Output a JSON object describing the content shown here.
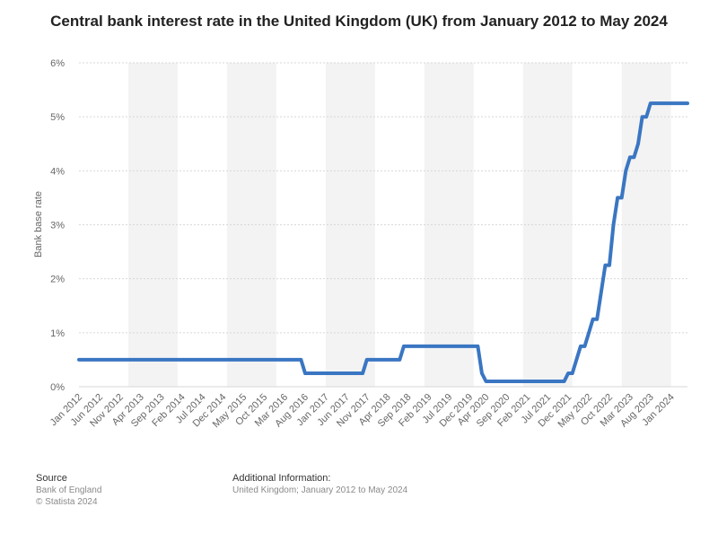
{
  "title": "Central bank interest rate in the United Kingdom (UK) from January 2012 to May 2024",
  "colors": {
    "line": "#3a76c2",
    "grid": "#d7d7d7",
    "band": "#f3f3f3",
    "text": "#666666"
  },
  "footer": {
    "source_heading": "Source",
    "source_lines": [
      "Bank of England",
      "© Statista 2024"
    ],
    "info_heading": "Additional Information:",
    "info_text": "United Kingdom; January 2012 to May 2024"
  },
  "chart_data": {
    "type": "line",
    "title": "Central bank interest rate in the United Kingdom (UK) from January 2012 to May 2024",
    "xlabel": "",
    "ylabel": "Bank base rate",
    "x_range": [
      "2012-01",
      "2024-05"
    ],
    "ylim": [
      0,
      6
    ],
    "y_ticks": [
      "0%",
      "1%",
      "2%",
      "3%",
      "4%",
      "5%",
      "6%"
    ],
    "x_tick_labels": [
      "Jan 2012",
      "Jun 2012",
      "Nov 2012",
      "Apr 2013",
      "Sep 2013",
      "Feb 2014",
      "Jul 2014",
      "Dec 2014",
      "May 2015",
      "Oct 2015",
      "Mar 2016",
      "Aug 2016",
      "Jan 2017",
      "Jun 2017",
      "Nov 2017",
      "Apr 2018",
      "Sep 2018",
      "Feb 2019",
      "Jul 2019",
      "Dec 2019",
      "Apr 2020",
      "Sep 2020",
      "Feb 2021",
      "Jul 2021",
      "Dec 2021",
      "May 2022",
      "Oct 2022",
      "Mar 2023",
      "Aug 2023",
      "Jan 2024"
    ],
    "grid": true,
    "series": [
      {
        "points": [
          [
            "2012-01",
            0.5
          ],
          [
            "2016-07",
            0.5
          ],
          [
            "2016-08",
            0.25
          ],
          [
            "2017-10",
            0.25
          ],
          [
            "2017-11",
            0.5
          ],
          [
            "2018-07",
            0.5
          ],
          [
            "2018-08",
            0.75
          ],
          [
            "2020-02",
            0.75
          ],
          [
            "2020-03",
            0.25
          ],
          [
            "2020-04",
            0.1
          ],
          [
            "2021-11",
            0.1
          ],
          [
            "2021-12",
            0.25
          ],
          [
            "2022-01",
            0.25
          ],
          [
            "2022-02",
            0.5
          ],
          [
            "2022-03",
            0.75
          ],
          [
            "2022-04",
            0.75
          ],
          [
            "2022-05",
            1.0
          ],
          [
            "2022-06",
            1.25
          ],
          [
            "2022-07",
            1.25
          ],
          [
            "2022-08",
            1.75
          ],
          [
            "2022-09",
            2.25
          ],
          [
            "2022-10",
            2.25
          ],
          [
            "2022-11",
            3.0
          ],
          [
            "2022-12",
            3.5
          ],
          [
            "2023-01",
            3.5
          ],
          [
            "2023-02",
            4.0
          ],
          [
            "2023-03",
            4.25
          ],
          [
            "2023-04",
            4.25
          ],
          [
            "2023-05",
            4.5
          ],
          [
            "2023-06",
            5.0
          ],
          [
            "2023-07",
            5.0
          ],
          [
            "2023-08",
            5.25
          ],
          [
            "2024-05",
            5.25
          ]
        ]
      }
    ]
  }
}
